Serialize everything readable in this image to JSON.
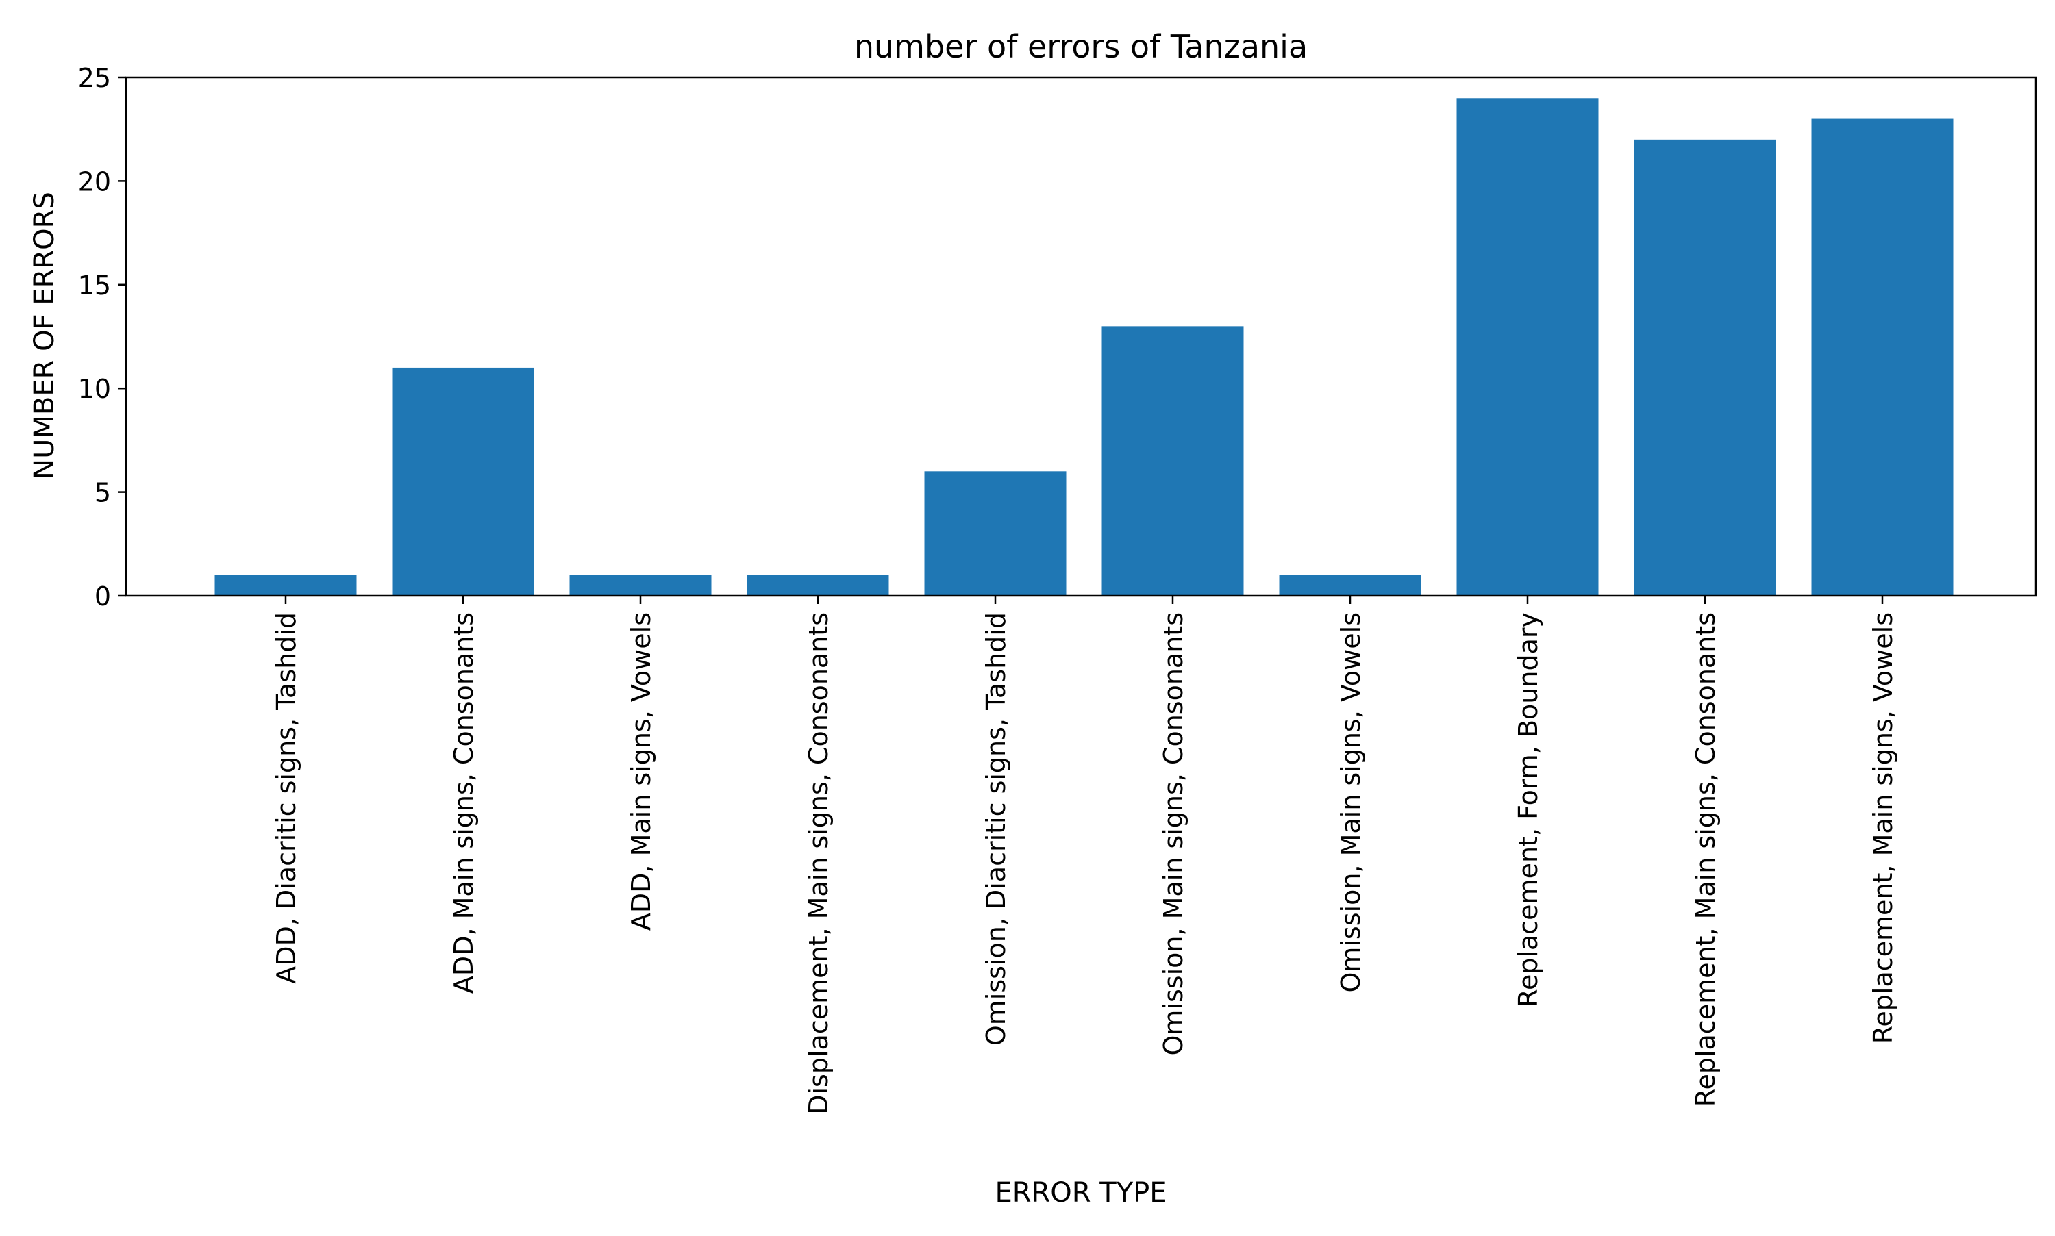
{
  "chart_data": {
    "type": "bar",
    "title": "number of errors of Tanzania",
    "xlabel": "ERROR TYPE",
    "ylabel": "NUMBER OF ERRORS",
    "categories": [
      "ADD, Diacritic signs, Tashdid",
      "ADD, Main signs, Consonants",
      "ADD, Main signs, Vowels",
      "Displacement, Main signs, Consonants",
      "Omission, Diacritic signs, Tashdid",
      "Omission, Main signs, Consonants",
      "Omission, Main signs, Vowels",
      "Replacement, Form, Boundary",
      "Replacement, Main signs, Consonants",
      "Replacement, Main signs, Vowels"
    ],
    "values": [
      1,
      11,
      1,
      1,
      6,
      13,
      1,
      24,
      22,
      23
    ],
    "ylim": [
      0,
      25
    ],
    "yticks": [
      0,
      5,
      10,
      15,
      20,
      25
    ],
    "grid": false,
    "legend": false,
    "bar_color": "#1f77b4"
  }
}
